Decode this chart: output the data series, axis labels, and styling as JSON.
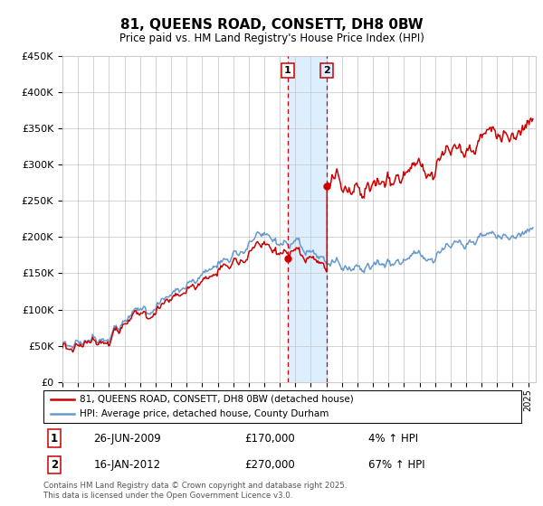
{
  "title": "81, QUEENS ROAD, CONSETT, DH8 0BW",
  "subtitle": "Price paid vs. HM Land Registry's House Price Index (HPI)",
  "legend_line1": "81, QUEENS ROAD, CONSETT, DH8 0BW (detached house)",
  "legend_line2": "HPI: Average price, detached house, County Durham",
  "footer": "Contains HM Land Registry data © Crown copyright and database right 2025.\nThis data is licensed under the Open Government Licence v3.0.",
  "transaction1_label": "1",
  "transaction1_date": "26-JUN-2009",
  "transaction1_price": "£170,000",
  "transaction1_hpi": "4% ↑ HPI",
  "transaction1_year": 2009.49,
  "transaction1_value": 170000,
  "transaction2_label": "2",
  "transaction2_date": "16-JAN-2012",
  "transaction2_price": "£270,000",
  "transaction2_hpi": "67% ↑ HPI",
  "transaction2_year": 2012.04,
  "transaction2_value": 270000,
  "ylim": [
    0,
    450000
  ],
  "yticks": [
    0,
    50000,
    100000,
    150000,
    200000,
    250000,
    300000,
    350000,
    400000,
    450000
  ],
  "ytick_labels": [
    "£0",
    "£50K",
    "£100K",
    "£150K",
    "£200K",
    "£250K",
    "£300K",
    "£350K",
    "£400K",
    "£450K"
  ],
  "xmin": 1995,
  "xmax": 2025.5,
  "red_color": "#cc0000",
  "blue_color": "#6699cc",
  "shade_color": "#ddeeff",
  "background_color": "#ffffff",
  "grid_color": "#cccccc"
}
